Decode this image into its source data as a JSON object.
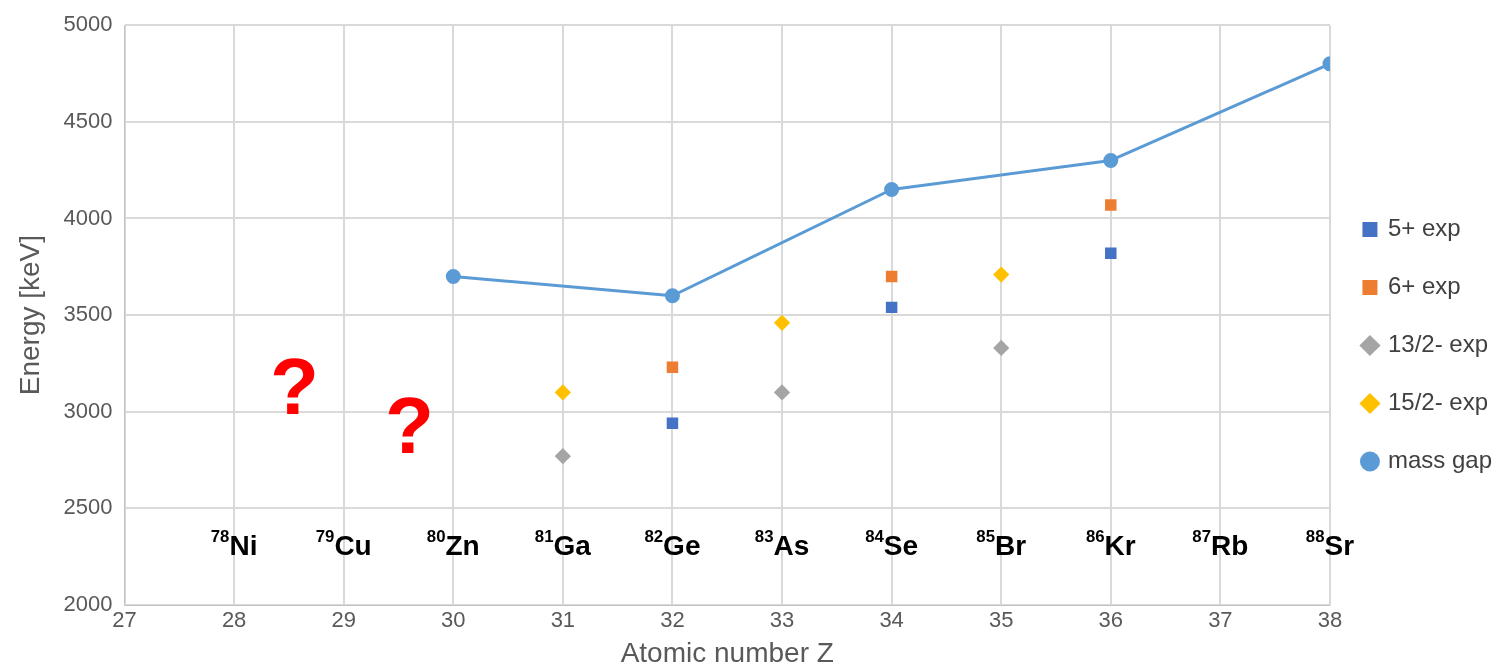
{
  "chart_data": {
    "type": "scatter",
    "xlabel": "Atomic number Z",
    "ylabel": "Energy [keV]",
    "xlim": [
      27,
      38
    ],
    "xticks": [
      27,
      28,
      29,
      30,
      31,
      32,
      33,
      34,
      35,
      36,
      37,
      38
    ],
    "ylim": [
      2000,
      5000
    ],
    "yticks": [
      2000,
      2500,
      3000,
      3500,
      4000,
      4500,
      5000
    ],
    "grid": true,
    "legend": "right",
    "series": [
      {
        "name": "5+ exp",
        "type": "scatter",
        "marker": "square",
        "color": "#4472c4",
        "x": [
          32,
          34,
          36
        ],
        "values": [
          2940,
          3540,
          3820
        ]
      },
      {
        "name": "6+ exp",
        "type": "scatter",
        "marker": "square",
        "color": "#ed7d31",
        "x": [
          32,
          34,
          36
        ],
        "values": [
          3230,
          3700,
          4070
        ]
      },
      {
        "name": "13/2- exp",
        "type": "scatter",
        "marker": "diamond",
        "color": "#a5a5a5",
        "x": [
          31,
          33,
          35
        ],
        "values": [
          2770,
          3100,
          3330
        ]
      },
      {
        "name": "15/2- exp",
        "type": "scatter",
        "marker": "diamond",
        "color": "#ffc000",
        "x": [
          31,
          33,
          35
        ],
        "values": [
          3100,
          3460,
          3710
        ]
      },
      {
        "name": "mass gap",
        "type": "line",
        "marker": "circle",
        "color": "#5b9bd5",
        "x": [
          30,
          32,
          34,
          36,
          38
        ],
        "values": [
          3700,
          3600,
          4150,
          4300,
          4800
        ]
      }
    ],
    "annotations": [
      "$^{78}$Ni",
      "$^{79}$Cu",
      "$^{80}$Zn",
      "$^{81}$Ga",
      "$^{82}$Ge",
      "$^{83}$As",
      "$^{84}$Se",
      "$^{85}$Br",
      "$^{86}$Kr",
      "$^{87}$Rb",
      "$^{88}$Sr",
      "?",
      "?"
    ]
  }
}
